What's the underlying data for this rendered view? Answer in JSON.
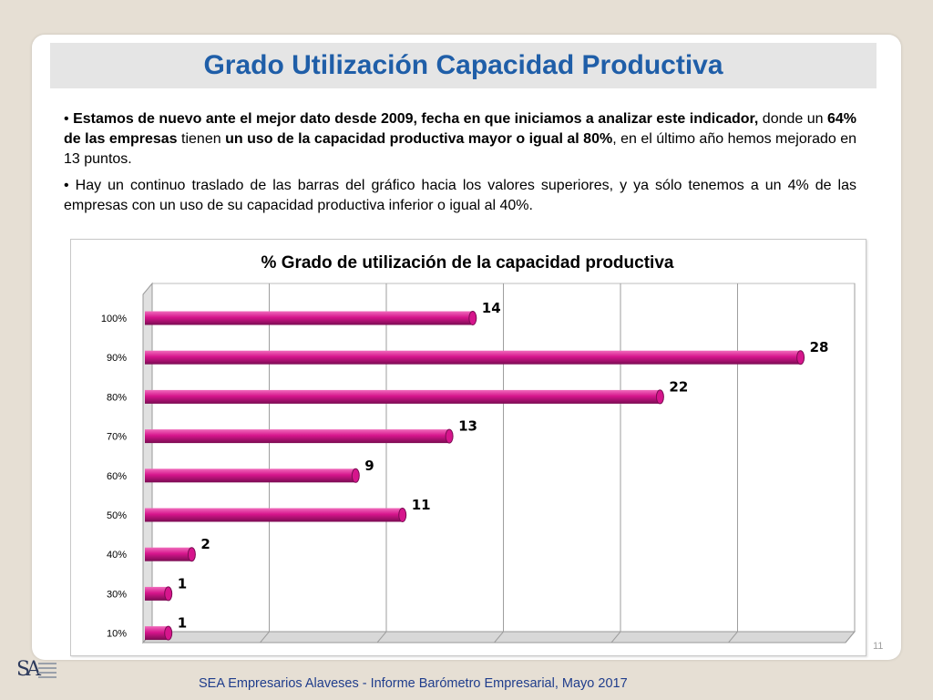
{
  "title": "Grado Utilización Capacidad Productiva",
  "bullets": [
    {
      "b1": "Estamos  de nuevo ante el mejor dato desde 2009, fecha en que iniciamos a analizar este indicador,",
      "t1": " donde un ",
      "b2": "64% de las empresas",
      "t2": " tienen ",
      "b3": "un uso de la capacidad productiva mayor o igual al 80%",
      "t3": ", en el último año hemos mejorado en 13 puntos."
    },
    {
      "t1": "Hay un continuo traslado de las barras del gráfico hacia los valores superiores, y ya sólo tenemos a un 4% de las empresas con un uso de su capacidad productiva inferior o igual al 40%."
    }
  ],
  "chart_data": {
    "type": "bar",
    "orientation": "horizontal",
    "title": "% Grado de utilización de la capacidad productiva",
    "categories": [
      "10%",
      "30%",
      "40%",
      "50%",
      "60%",
      "70%",
      "80%",
      "90%",
      "100%"
    ],
    "values": [
      1,
      1,
      2,
      11,
      9,
      13,
      22,
      28,
      14
    ],
    "xlim": [
      0,
      30
    ],
    "grid": true,
    "bar_color": "#d6158c",
    "bar_highlight": "#f06cbc",
    "bar_edge": "#7a0c52"
  },
  "page_number": "11",
  "footer": "SEA Empresarios Alaveses  -  Informe Barómetro Empresarial, Mayo 2017",
  "logo_text": "SA"
}
